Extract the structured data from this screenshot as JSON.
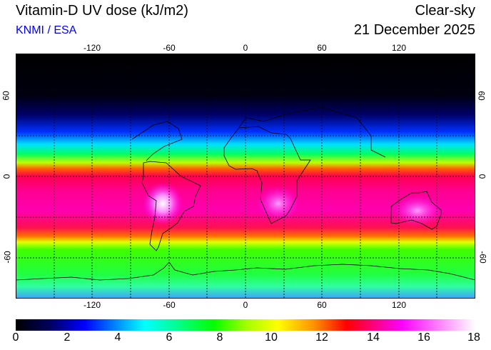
{
  "header": {
    "title": "Vitamin-D UV dose (kJ/m2)",
    "credit": "KNMI / ESA",
    "sky_condition": "Clear-sky",
    "date": "21 December 2025"
  },
  "map": {
    "lon_ticks": [
      "-120",
      "-60",
      "0",
      "60",
      "120"
    ],
    "lat_ticks": [
      "60",
      "0",
      "-60"
    ],
    "gridline_spacing_deg": 30
  },
  "colorbar": {
    "labels": [
      "0",
      "2",
      "4",
      "6",
      "8",
      "10",
      "12",
      "14",
      "16",
      "18"
    ],
    "min": 0,
    "max": 18,
    "unit": "kJ/m2"
  }
}
